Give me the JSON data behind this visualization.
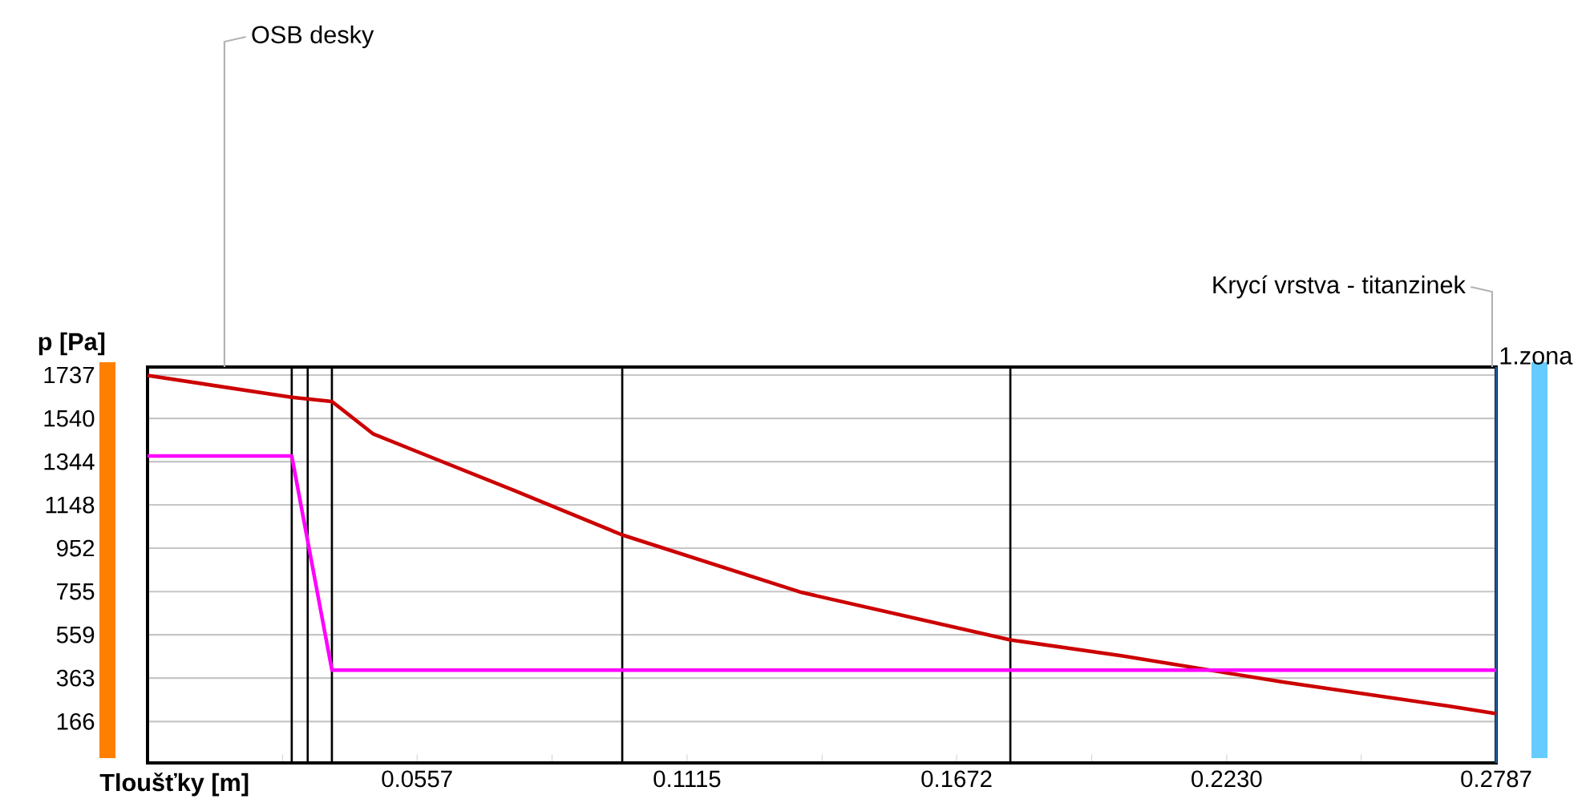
{
  "chart_data": {
    "type": "line",
    "xlabel": "Tloušťky [m]",
    "ylabel": "p [Pa]",
    "xlim": [
      0,
      0.2787
    ],
    "ylim": [
      -22,
      1773
    ],
    "xticks": [
      {
        "value": 0.0279,
        "label": null
      },
      0.0557,
      {
        "value": 0.0836,
        "label": null
      },
      0.1115,
      {
        "value": 0.1394,
        "label": null
      },
      0.1672,
      {
        "value": 0.1951,
        "label": null
      },
      {
        "value": 0.223,
        "label": "0.2230"
      },
      {
        "value": 0.2508,
        "label": null
      },
      0.2787
    ],
    "yticks": [
      166,
      363,
      559,
      755,
      952,
      1148,
      1344,
      1540,
      1737
    ],
    "grid": "y",
    "marker": "none",
    "line_style": "solid",
    "series": [
      {
        "color": "#cc0000",
        "x": [
          0,
          0.0298,
          0.0381,
          0.0467,
          0.0756,
          0.0981,
          0.1352,
          0.1783,
          0.2015,
          0.2346,
          0.2688,
          0.2787
        ],
        "values": [
          1735,
          1636,
          1617,
          1469,
          1215,
          1012,
          751,
          536,
          463,
          345,
          236,
          202
        ]
      },
      {
        "color": "#ff00ff",
        "x": [
          0,
          0.0298,
          0.0381,
          0.2787
        ],
        "values": [
          1370,
          1370,
          399,
          399
        ]
      }
    ],
    "ref_lines": [
      {
        "axis": "x",
        "value": 0.0298,
        "color": "#000000"
      },
      {
        "axis": "x",
        "value": 0.0331,
        "color": "#000000"
      },
      {
        "axis": "x",
        "value": 0.0381,
        "color": "#000000"
      },
      {
        "axis": "x",
        "value": 0.0981,
        "color": "#000000"
      },
      {
        "axis": "x",
        "value": 0.1783,
        "color": "#000000"
      },
      {
        "axis": "x",
        "value": 0.2787,
        "color": "#1f5f9f"
      }
    ],
    "annotations": [
      "OSB desky",
      "Krycí vrstva - titanzinek",
      "1.zona"
    ]
  }
}
